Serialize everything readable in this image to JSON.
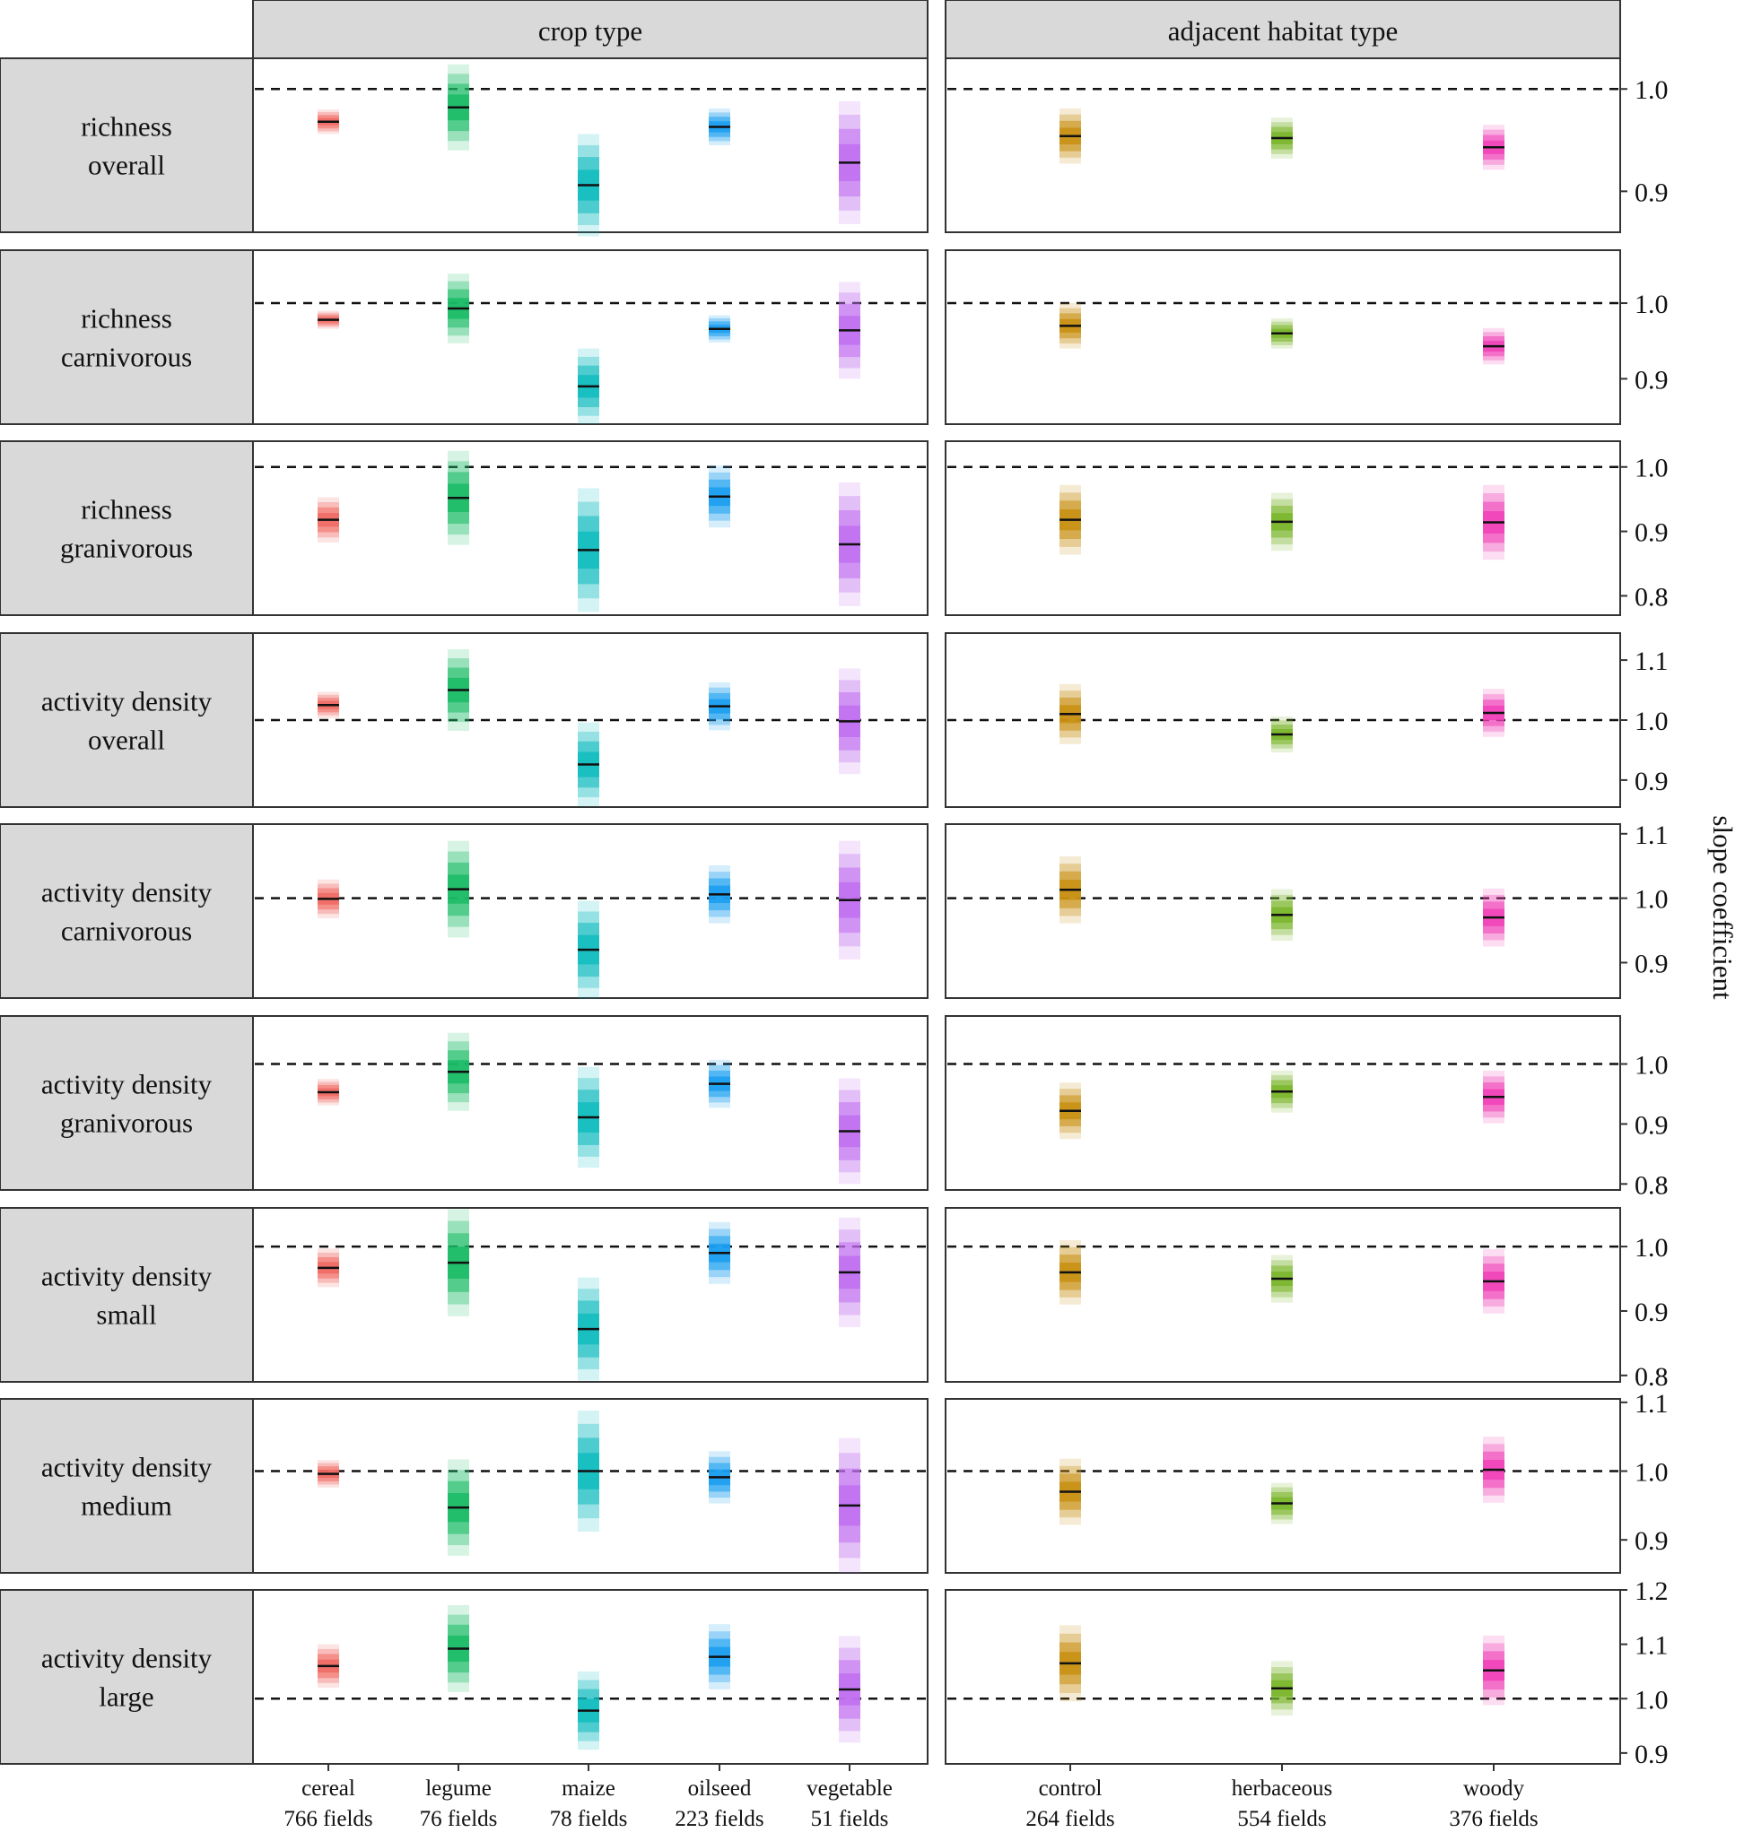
{
  "chart_data": {
    "type": "interval",
    "ylabel": "slope coefficient",
    "facet_columns": [
      {
        "title": "crop type",
        "categories": [
          "cereal",
          "legume",
          "maize",
          "oilseed",
          "vegetable"
        ],
        "sublabels": [
          "766 fields",
          "76 fields",
          "78 fields",
          "223 fields",
          "51 fields"
        ],
        "colors": [
          "#f06a63",
          "#1abb66",
          "#12bcc0",
          "#1a9ef0",
          "#c16ff0"
        ]
      },
      {
        "title": "adjacent habitat type",
        "categories": [
          "control",
          "herbaceous",
          "woody"
        ],
        "sublabels": [
          "264 fields",
          "554 fields",
          "376 fields"
        ],
        "colors": [
          "#c88f12",
          "#7ab52a",
          "#f042b8"
        ]
      }
    ],
    "panels": [
      {
        "label_lines": [
          "richness",
          "overall"
        ],
        "ylim": [
          0.86,
          1.03
        ],
        "yticks": [
          "1.0",
          "0.9"
        ],
        "ytick_values": [
          1.0,
          0.9
        ],
        "reference": 1.0,
        "crop": [
          {
            "median": 0.968,
            "hw": 0.012
          },
          {
            "median": 0.982,
            "hw": 0.042
          },
          {
            "median": 0.906,
            "hw": 0.05
          },
          {
            "median": 0.963,
            "hw": 0.018
          },
          {
            "median": 0.928,
            "hw": 0.06
          }
        ],
        "habitat": [
          {
            "median": 0.954,
            "hw": 0.027
          },
          {
            "median": 0.952,
            "hw": 0.02
          },
          {
            "median": 0.943,
            "hw": 0.022
          }
        ]
      },
      {
        "label_lines": [
          "richness",
          "carnivorous"
        ],
        "ylim": [
          0.84,
          1.07
        ],
        "yticks": [
          "1.0",
          "0.9"
        ],
        "ytick_values": [
          1.0,
          0.9
        ],
        "reference": 1.0,
        "crop": [
          {
            "median": 0.978,
            "hw": 0.012
          },
          {
            "median": 0.993,
            "hw": 0.046
          },
          {
            "median": 0.89,
            "hw": 0.05
          },
          {
            "median": 0.966,
            "hw": 0.018
          },
          {
            "median": 0.964,
            "hw": 0.064
          }
        ],
        "habitat": [
          {
            "median": 0.97,
            "hw": 0.03
          },
          {
            "median": 0.96,
            "hw": 0.02
          },
          {
            "median": 0.943,
            "hw": 0.024
          }
        ]
      },
      {
        "label_lines": [
          "richness",
          "granivorous"
        ],
        "ylim": [
          0.77,
          1.04
        ],
        "yticks": [
          "1.0",
          "0.9",
          "0.8"
        ],
        "ytick_values": [
          1.0,
          0.9,
          0.8
        ],
        "reference": 1.0,
        "crop": [
          {
            "median": 0.918,
            "hw": 0.035
          },
          {
            "median": 0.952,
            "hw": 0.073
          },
          {
            "median": 0.871,
            "hw": 0.096
          },
          {
            "median": 0.954,
            "hw": 0.048
          },
          {
            "median": 0.88,
            "hw": 0.096
          }
        ],
        "habitat": [
          {
            "median": 0.918,
            "hw": 0.054
          },
          {
            "median": 0.915,
            "hw": 0.045
          },
          {
            "median": 0.914,
            "hw": 0.058
          }
        ]
      },
      {
        "label_lines": [
          "activity density",
          "overall"
        ],
        "ylim": [
          0.855,
          1.145
        ],
        "yticks": [
          "1.1",
          "1.0",
          "0.9"
        ],
        "ytick_values": [
          1.1,
          1.0,
          0.9
        ],
        "reference": 1.0,
        "crop": [
          {
            "median": 1.025,
            "hw": 0.022
          },
          {
            "median": 1.05,
            "hw": 0.068
          },
          {
            "median": 0.926,
            "hw": 0.07
          },
          {
            "median": 1.023,
            "hw": 0.04
          },
          {
            "median": 0.998,
            "hw": 0.088
          }
        ],
        "habitat": [
          {
            "median": 1.01,
            "hw": 0.05
          },
          {
            "median": 0.976,
            "hw": 0.03
          },
          {
            "median": 1.012,
            "hw": 0.04
          }
        ]
      },
      {
        "label_lines": [
          "activity density",
          "carnivorous"
        ],
        "ylim": [
          0.845,
          1.115
        ],
        "yticks": [
          "1.1",
          "1.0",
          "0.9"
        ],
        "ytick_values": [
          1.1,
          1.0,
          0.9
        ],
        "reference": 1.0,
        "crop": [
          {
            "median": 0.999,
            "hw": 0.03
          },
          {
            "median": 1.014,
            "hw": 0.075
          },
          {
            "median": 0.92,
            "hw": 0.076
          },
          {
            "median": 1.006,
            "hw": 0.045
          },
          {
            "median": 0.997,
            "hw": 0.092
          }
        ],
        "habitat": [
          {
            "median": 1.013,
            "hw": 0.052
          },
          {
            "median": 0.974,
            "hw": 0.04
          },
          {
            "median": 0.97,
            "hw": 0.045
          }
        ]
      },
      {
        "label_lines": [
          "activity density",
          "granivorous"
        ],
        "ylim": [
          0.79,
          1.08
        ],
        "yticks": [
          "1.0",
          "0.9",
          "0.8"
        ],
        "ytick_values": [
          1.0,
          0.9,
          0.8
        ],
        "reference": 1.0,
        "crop": [
          {
            "median": 0.953,
            "hw": 0.022
          },
          {
            "median": 0.987,
            "hw": 0.065
          },
          {
            "median": 0.911,
            "hw": 0.084
          },
          {
            "median": 0.967,
            "hw": 0.04
          },
          {
            "median": 0.888,
            "hw": 0.088
          }
        ],
        "habitat": [
          {
            "median": 0.922,
            "hw": 0.047
          },
          {
            "median": 0.954,
            "hw": 0.035
          },
          {
            "median": 0.945,
            "hw": 0.044
          }
        ]
      },
      {
        "label_lines": [
          "activity density",
          "small"
        ],
        "ylim": [
          0.79,
          1.06
        ],
        "yticks": [
          "1.0",
          "0.9",
          "0.8"
        ],
        "ytick_values": [
          1.0,
          0.9,
          0.8
        ],
        "reference": 1.0,
        "crop": [
          {
            "median": 0.967,
            "hw": 0.03
          },
          {
            "median": 0.975,
            "hw": 0.083
          },
          {
            "median": 0.872,
            "hw": 0.08
          },
          {
            "median": 0.99,
            "hw": 0.048
          },
          {
            "median": 0.96,
            "hw": 0.085
          }
        ],
        "habitat": [
          {
            "median": 0.96,
            "hw": 0.05
          },
          {
            "median": 0.95,
            "hw": 0.037
          },
          {
            "median": 0.946,
            "hw": 0.05
          }
        ]
      },
      {
        "label_lines": [
          "activity density",
          "medium"
        ],
        "ylim": [
          0.852,
          1.105
        ],
        "yticks": [
          "1.1",
          "1.0",
          "0.9"
        ],
        "ytick_values": [
          1.1,
          1.0,
          0.9
        ],
        "reference": 1.0,
        "crop": [
          {
            "median": 0.996,
            "hw": 0.02
          },
          {
            "median": 0.947,
            "hw": 0.07
          },
          {
            "median": 1.0,
            "hw": 0.088
          },
          {
            "median": 0.991,
            "hw": 0.038
          },
          {
            "median": 0.95,
            "hw": 0.098
          }
        ],
        "habitat": [
          {
            "median": 0.97,
            "hw": 0.048
          },
          {
            "median": 0.953,
            "hw": 0.03
          },
          {
            "median": 1.002,
            "hw": 0.048
          }
        ]
      },
      {
        "label_lines": [
          "activity density",
          "large"
        ],
        "ylim": [
          0.88,
          1.2
        ],
        "yticks": [
          "1.2",
          "1.1",
          "1.0",
          "0.9"
        ],
        "ytick_values": [
          1.2,
          1.1,
          1.0,
          0.9
        ],
        "reference": 1.0,
        "crop": [
          {
            "median": 1.06,
            "hw": 0.04
          },
          {
            "median": 1.092,
            "hw": 0.08
          },
          {
            "median": 0.978,
            "hw": 0.072
          },
          {
            "median": 1.077,
            "hw": 0.06
          },
          {
            "median": 1.017,
            "hw": 0.098
          }
        ],
        "habitat": [
          {
            "median": 1.065,
            "hw": 0.07
          },
          {
            "median": 1.019,
            "hw": 0.05
          },
          {
            "median": 1.052,
            "hw": 0.064
          }
        ]
      }
    ]
  }
}
